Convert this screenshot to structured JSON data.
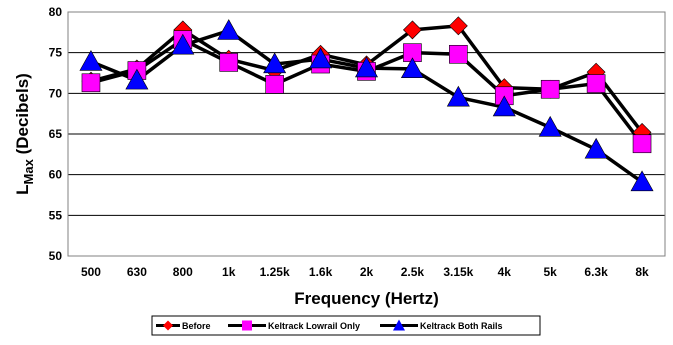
{
  "chart_data": {
    "type": "line",
    "categories": [
      "500",
      "630",
      "800",
      "1k",
      "1.25k",
      "1.6k",
      "2k",
      "2.5k",
      "3.15k",
      "4k",
      "5k",
      "6.3k",
      "8k"
    ],
    "series": [
      {
        "name": "Before",
        "color": "#ff0000",
        "marker": "diamond",
        "values": [
          71.5,
          73,
          77.8,
          74.2,
          72.8,
          74.8,
          73.5,
          77.8,
          78.3,
          70.7,
          70.5,
          72.6,
          65.2
        ]
      },
      {
        "name": "Keltrack Lowrail Only",
        "color": "#ff00ff",
        "marker": "square",
        "values": [
          71.3,
          72.8,
          76.6,
          73.8,
          71.1,
          73.6,
          72.7,
          75,
          74.8,
          69.7,
          70.5,
          71.2,
          63.8
        ]
      },
      {
        "name": "Keltrack Both Rails",
        "color": "#0000ff",
        "marker": "triangle",
        "values": [
          73.9,
          71.6,
          75.9,
          77.7,
          73.6,
          74.2,
          73.1,
          73,
          69.5,
          68.3,
          65.8,
          63.1,
          59.1
        ]
      }
    ],
    "xlabel": "Frequency (Hertz)",
    "ylabel_main": "L",
    "ylabel_sub": "Max",
    "ylabel_rest": " (Decibels)",
    "ylim": [
      50,
      80
    ],
    "yticks": [
      50,
      55,
      60,
      65,
      70,
      75,
      80
    ],
    "grid": "horizontal",
    "legend_position": "bottom-center",
    "plot_background": "#ffffff",
    "line_color": "#000000"
  }
}
